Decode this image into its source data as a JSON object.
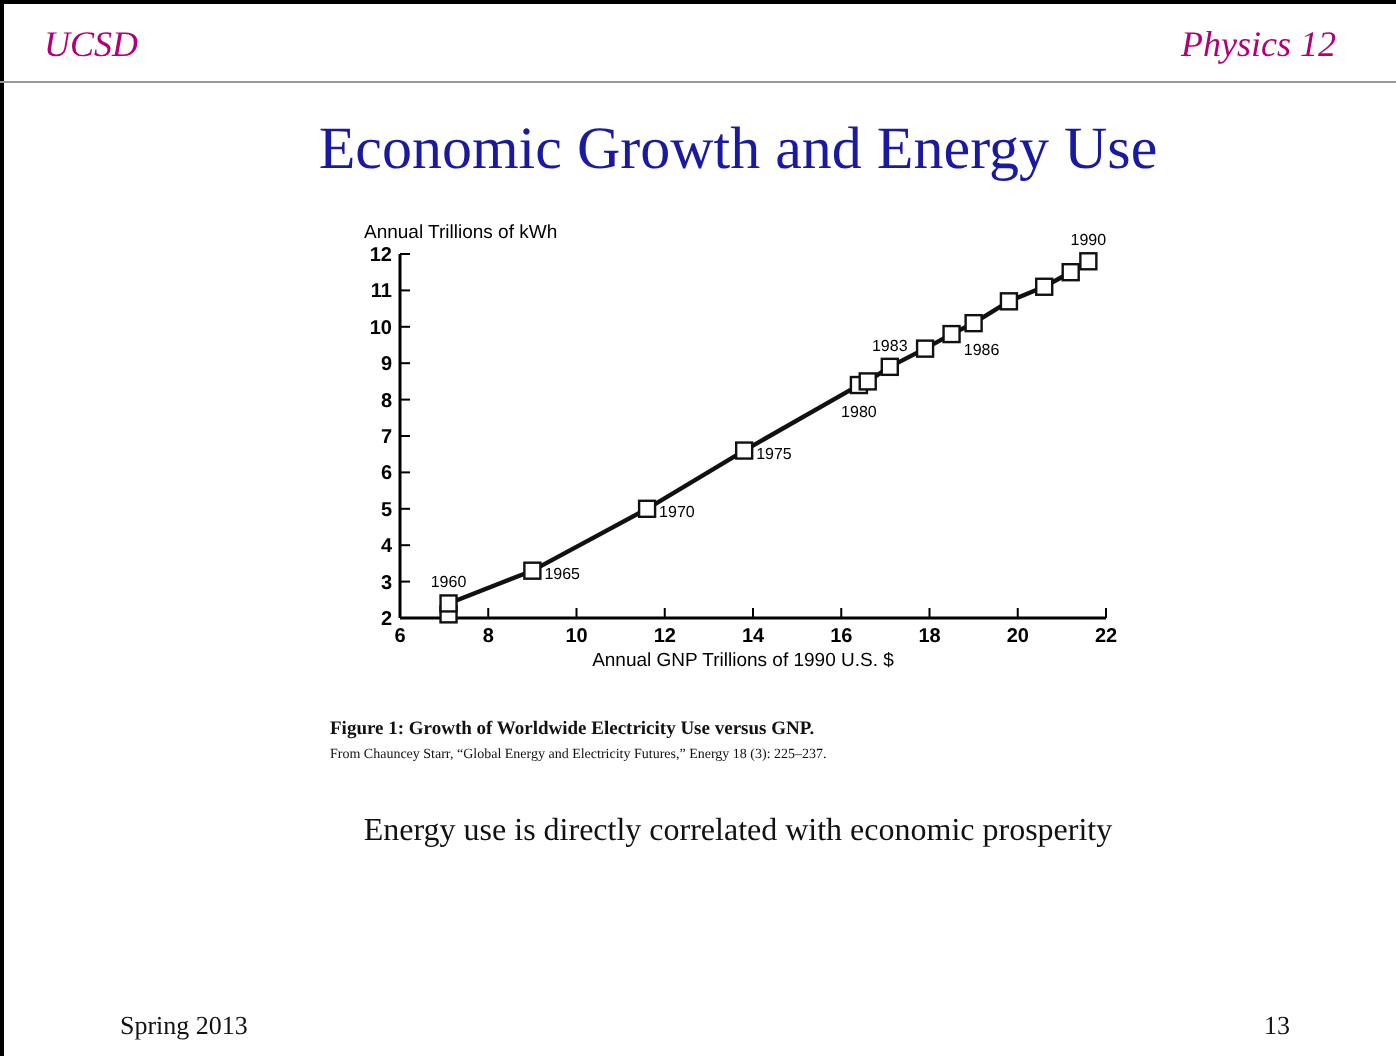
{
  "chart_data": {
    "type": "line",
    "title": "Economic Growth and Energy Use",
    "xlabel": "Annual GNP Trillions of 1990 U.S. $",
    "ylabel": "Annual Trillions of kWh",
    "xlim": [
      6,
      22
    ],
    "xticks": [
      6,
      8,
      10,
      12,
      14,
      16,
      18,
      20,
      22
    ],
    "ylim": [
      2,
      12
    ],
    "yticks": [
      2,
      3,
      4,
      5,
      6,
      7,
      8,
      9,
      10,
      11,
      12
    ],
    "grid": false,
    "marker": "square",
    "line_style": "solid",
    "series": [
      {
        "color": "#111111",
        "x": [
          7.1,
          7.1,
          9.0,
          11.6,
          13.8,
          16.4,
          16.6,
          17.1,
          17.9,
          18.5,
          19.0,
          19.8,
          20.6,
          21.2,
          21.6
        ],
        "values": [
          2.1,
          2.4,
          3.3,
          5.0,
          6.6,
          8.4,
          8.5,
          8.9,
          9.4,
          9.8,
          10.1,
          10.7,
          11.1,
          11.5,
          11.8
        ]
      }
    ],
    "annotations": [
      "UCSD",
      "Physics 12",
      "Figure 1: Growth of Worldwide Electricity Use versus GNP.",
      "From Chauncey Starr, “Global Energy and Electricity Futures,” Energy 18 (3): 225–237.",
      "Energy use is directly correlated with economic prosperity",
      "Spring 2013",
      "13",
      {
        "text": "1960",
        "x": 7.1,
        "y": 2.4
      },
      {
        "text": "1965",
        "x": 9.0,
        "y": 3.3
      },
      {
        "text": "1970",
        "x": 11.6,
        "y": 5.0
      },
      {
        "text": "1975",
        "x": 13.8,
        "y": 6.6
      },
      {
        "text": "1980",
        "x": 16.4,
        "y": 8.4
      },
      {
        "text": "1983",
        "x": 17.1,
        "y": 8.9
      },
      {
        "text": "1986",
        "x": 19.0,
        "y": 10.1
      },
      {
        "text": "1990",
        "x": 21.6,
        "y": 11.8
      }
    ]
  }
}
